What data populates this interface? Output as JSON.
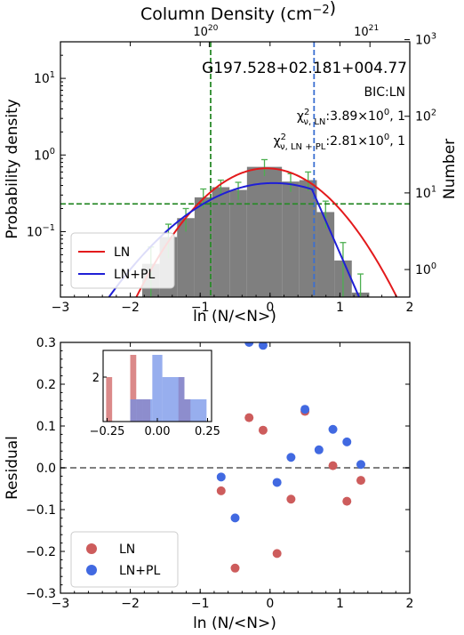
{
  "chart_data": [
    {
      "type": "histogram",
      "title": "Column Density (cm⁻²)",
      "top_axis": {
        "ticks": [
          {
            "label_base": "10",
            "label_exp": "20",
            "x": -0.87
          },
          {
            "label_base": "10",
            "label_exp": "21",
            "x": 1.43
          }
        ]
      },
      "xlabel": "ln (N/<N>)",
      "ylabel": "Probability density",
      "ylabel_right": "Number",
      "xlim": [
        -3,
        2
      ],
      "ylim": [
        0.014,
        30
      ],
      "yscale": "log",
      "xticks": [
        "−3",
        "−2",
        "−1",
        "0",
        "1",
        "2"
      ],
      "yticks_left": [
        {
          "value": 0.1,
          "base": "10",
          "exp": "−1"
        },
        {
          "value": 1,
          "base": "10",
          "exp": "0"
        },
        {
          "value": 10,
          "base": "10",
          "exp": "1"
        }
      ],
      "yticks_right": [
        {
          "value": 0.032,
          "base": "10",
          "exp": "0"
        },
        {
          "value": 0.32,
          "base": "10",
          "exp": "1"
        },
        {
          "value": 3.2,
          "base": "10",
          "exp": "2"
        },
        {
          "value": 32,
          "base": "10",
          "exp": "3"
        }
      ],
      "annotations": {
        "name": "G197.528+02.181+004.77",
        "bic": "BIC:LN",
        "chi_ln_sub": "ν, LN",
        "chi_ln_val": ":3.89×10",
        "chi_ln_exp": "0",
        "chi_ln_tail": ", 1",
        "chi_lnpl_sub": "ν, LN + PL",
        "chi_lnpl_val": ":2.81×10",
        "chi_lnpl_exp": "0",
        "chi_lnpl_tail": ", 1"
      },
      "bars": {
        "edges": [
          -1.83,
          -1.58,
          -1.33,
          -1.08,
          -0.83,
          -0.58,
          -0.33,
          0.17,
          0.42,
          0.67,
          0.92,
          1.17,
          1.42
        ],
        "values": [
          0.038,
          0.085,
          0.15,
          0.28,
          0.38,
          0.35,
          0.7,
          0.45,
          0.47,
          0.18,
          0.042,
          0.016
        ],
        "errors": [
          0.025,
          0.04,
          0.05,
          0.08,
          0.09,
          0.09,
          0.17,
          0.12,
          0.13,
          0.07,
          0.03,
          0.012
        ],
        "color": "#7f7f7f",
        "errorbar_color": "#4caf50"
      },
      "series": [
        {
          "name": "LN",
          "color": "#e31a1c",
          "type": "lognormal",
          "peak": 0.67,
          "mu": -0.05,
          "sigma": 0.67
        },
        {
          "name": "LN+PL",
          "color": "#1f1fd6",
          "type": "lognormal+powerlaw",
          "peak": 0.43,
          "mu": 0.05,
          "sigma": 0.9,
          "drop_start": 0.6,
          "drop_slope": -4.8
        }
      ],
      "vlines": [
        {
          "x": -0.85,
          "color": "#2a8a2a"
        },
        {
          "x": 0.63,
          "color": "#3b6fd1"
        }
      ],
      "hline": {
        "y": 0.23,
        "color": "#2a8a2a"
      },
      "legend": {
        "position": "lower-left",
        "entries": [
          "LN",
          "LN+PL"
        ]
      }
    },
    {
      "type": "scatter",
      "xlabel": "ln (N/<N>)",
      "ylabel": "Residual",
      "xlim": [
        -3,
        2
      ],
      "ylim": [
        -0.3,
        0.3
      ],
      "xticks": [
        "−3",
        "−2",
        "−1",
        "0",
        "1",
        "2"
      ],
      "yticks": [
        "−0.3",
        "−0.2",
        "−0.1",
        "0.0",
        "0.1",
        "0.2",
        "0.3"
      ],
      "zero_line": {
        "y": 0,
        "color": "#808080"
      },
      "series": [
        {
          "name": "LN",
          "color": "#cd5c5c",
          "points": [
            [
              -0.7,
              -0.055
            ],
            [
              -0.5,
              -0.24
            ],
            [
              -0.3,
              0.12
            ],
            [
              -0.1,
              0.09
            ],
            [
              0.1,
              -0.205
            ],
            [
              0.3,
              -0.075
            ],
            [
              0.5,
              0.135
            ],
            [
              0.9,
              0.005
            ],
            [
              1.1,
              -0.08
            ],
            [
              1.3,
              -0.03
            ]
          ]
        },
        {
          "name": "LN+PL",
          "color": "#4169e1",
          "points": [
            [
              -0.7,
              -0.022
            ],
            [
              -0.5,
              -0.12
            ],
            [
              -0.3,
              0.3
            ],
            [
              -0.1,
              0.293
            ],
            [
              0.1,
              -0.035
            ],
            [
              0.3,
              0.025
            ],
            [
              0.5,
              0.14
            ],
            [
              0.7,
              0.043
            ],
            [
              0.9,
              0.092
            ],
            [
              1.1,
              0.062
            ],
            [
              1.3,
              0.008
            ]
          ]
        }
      ],
      "legend": {
        "position": "lower-left",
        "entries": [
          "LN",
          "LN+PL"
        ]
      },
      "inset": {
        "type": "histogram",
        "xlim": [
          -0.27,
          0.27
        ],
        "ylim": [
          0,
          3.2
        ],
        "xticks": [
          "−0.25",
          "0.00",
          "0.25"
        ],
        "yticks": [
          "2"
        ],
        "series": [
          {
            "name": "LN",
            "color": "#cd5c5c",
            "bars": [
              [
                -0.255,
                -0.225,
                2
              ],
              [
                -0.135,
                -0.105,
                3
              ],
              [
                -0.105,
                -0.075,
                1
              ],
              [
                -0.075,
                -0.035,
                1
              ],
              [
                0.105,
                0.135,
                2
              ],
              [
                0.135,
                0.165,
                1
              ]
            ]
          },
          {
            "name": "LN+PL",
            "color": "#6f8fe8",
            "bars": [
              [
                -0.135,
                -0.025,
                1
              ],
              [
                -0.025,
                0.025,
                3
              ],
              [
                0.025,
                0.135,
                2
              ],
              [
                0.135,
                0.245,
                1
              ]
            ]
          }
        ]
      }
    }
  ]
}
